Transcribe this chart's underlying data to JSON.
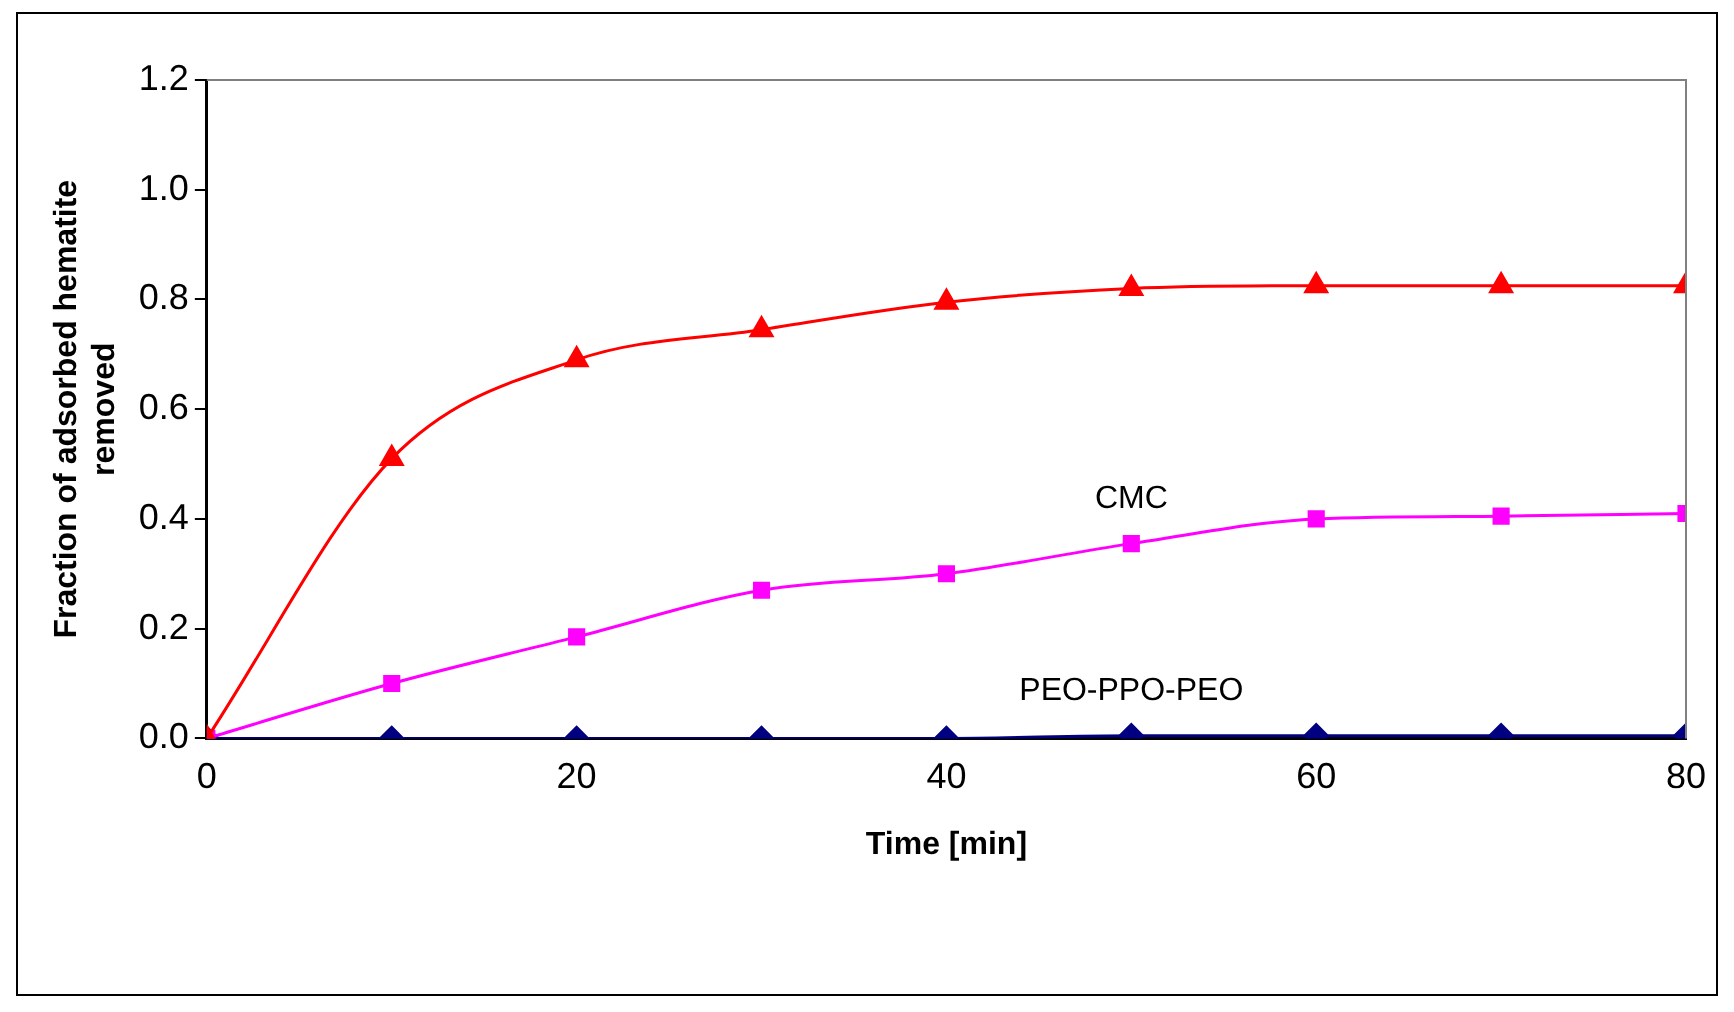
{
  "chart_data": {
    "type": "line",
    "xlabel": "Time [min]",
    "ylabel": "Fraction of adsorbed hematite removed",
    "x": [
      0,
      10,
      20,
      30,
      40,
      50,
      60,
      70,
      80
    ],
    "series": [
      {
        "color": "#ff0000",
        "marker": "triangle",
        "values": [
          0,
          0.51,
          0.69,
          0.745,
          0.795,
          0.82,
          0.825,
          0.825,
          0.825
        ]
      },
      {
        "name": "CMC",
        "color": "#ff00ff",
        "marker": "square",
        "values": [
          0,
          0.1,
          0.185,
          0.27,
          0.3,
          0.355,
          0.4,
          0.405,
          0.41
        ]
      },
      {
        "name": "PEO-PPO-PEO",
        "color": "#000080",
        "marker": "diamond",
        "values": [
          0,
          0,
          0,
          0,
          0,
          0.005,
          0.005,
          0.005,
          0.005
        ]
      }
    ],
    "xlim": [
      0,
      80
    ],
    "xticks": [
      0,
      20,
      40,
      60,
      80
    ],
    "ylim": [
      0,
      1.2
    ],
    "yticks": [
      {
        "value": 0,
        "label": "0.0"
      },
      0.2,
      0.4,
      0.6,
      0.8,
      {
        "value": 1,
        "label": "1.0"
      },
      1.2
    ],
    "grid": false,
    "legend": false
  }
}
